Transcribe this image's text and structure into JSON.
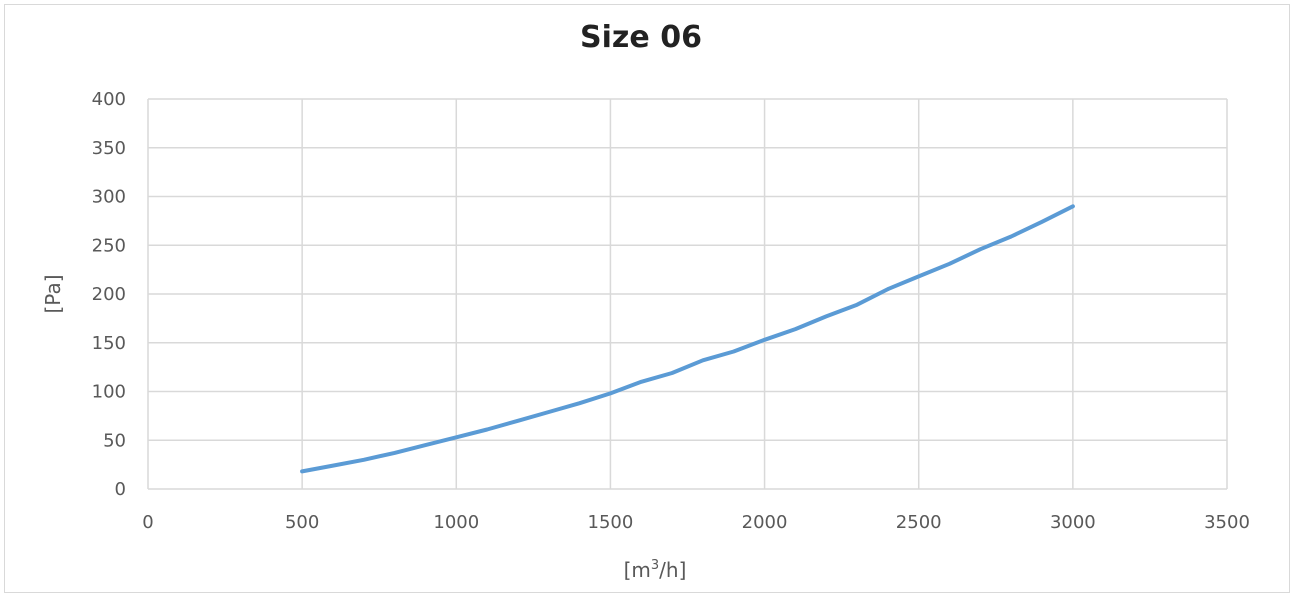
{
  "chart_data": {
    "type": "line",
    "title": "Size 06",
    "xlabel_parts": [
      "[m",
      "3",
      "/h]"
    ],
    "ylabel": "[Pa]",
    "xlim": [
      0,
      3500
    ],
    "ylim": [
      0,
      400
    ],
    "x_ticks": [
      0,
      500,
      1000,
      1500,
      2000,
      2500,
      3000,
      3500
    ],
    "y_ticks": [
      0,
      50,
      100,
      150,
      200,
      250,
      300,
      350,
      400
    ],
    "grid": true,
    "colors": {
      "line": "#5b9bd5",
      "grid": "#d9d9d9",
      "text": "#595959",
      "title": "#222222"
    },
    "series": [
      {
        "x": [
          500,
          600,
          700,
          800,
          900,
          1000,
          1100,
          1200,
          1300,
          1400,
          1500,
          1600,
          1700,
          1800,
          1900,
          2000,
          2100,
          2200,
          2300,
          2400,
          2500,
          2600,
          2700,
          2800,
          2900,
          3000
        ],
        "values": [
          18,
          24,
          30,
          37,
          45,
          53,
          61,
          70,
          79,
          88,
          98,
          110,
          119,
          132,
          141,
          153,
          164,
          177,
          189,
          205,
          218,
          231,
          246,
          259,
          274,
          290
        ]
      }
    ]
  }
}
